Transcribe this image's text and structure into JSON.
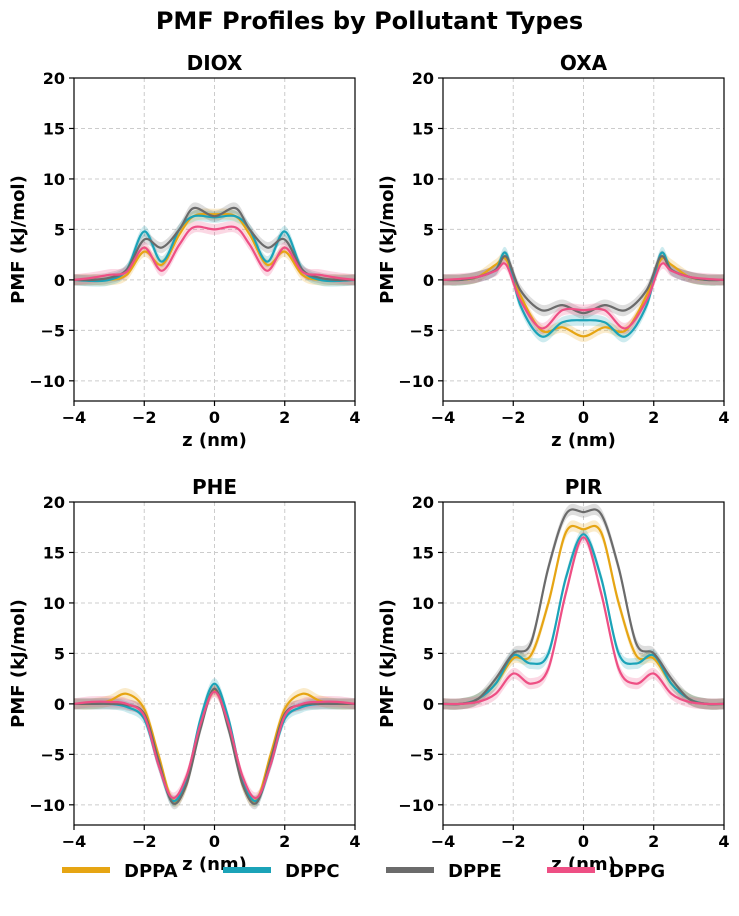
{
  "figure": {
    "title": "PMF Profiles by Pollutant Types"
  },
  "legend": {
    "placement": "bottom-center",
    "entries": [
      {
        "name": "DPPA",
        "color": "#E6A513"
      },
      {
        "name": "DPPC",
        "color": "#1BA3B8"
      },
      {
        "name": "DPPE",
        "color": "#6B6B6B"
      },
      {
        "name": "DPPG",
        "color": "#EE4F84"
      }
    ]
  },
  "chart_data": [
    {
      "type": "line",
      "title": "DIOX",
      "xlabel": "z (nm)",
      "ylabel": "PMF (kJ/mol)",
      "xlim": [
        -4,
        4
      ],
      "ylim": [
        -12,
        20
      ],
      "xticks": [
        "−4",
        "−2",
        "0",
        "2",
        "4"
      ],
      "yticks": [
        "20",
        "15",
        "10",
        "5",
        "0",
        "−5",
        "−10"
      ],
      "grid": true,
      "x": [
        -4,
        -3.5,
        -3,
        -2.5,
        -2,
        -1.5,
        -1,
        -0.6,
        0,
        0.6,
        1,
        1.5,
        2,
        2.5,
        3,
        3.5,
        4
      ],
      "series": [
        {
          "name": "DPPA",
          "values": [
            0,
            0,
            0,
            0.5,
            2.8,
            1.5,
            4.5,
            6.3,
            6.5,
            6.3,
            4.5,
            1.5,
            2.8,
            0.5,
            0,
            0,
            0
          ]
        },
        {
          "name": "DPPC",
          "values": [
            0,
            -0.1,
            0,
            1.0,
            4.8,
            1.8,
            5.0,
            6.3,
            6.2,
            6.3,
            5.0,
            1.8,
            4.8,
            1.0,
            0,
            -0.1,
            0
          ]
        },
        {
          "name": "DPPE",
          "values": [
            0,
            0,
            0.2,
            1.0,
            4.0,
            3.2,
            5.0,
            7.1,
            6.3,
            7.1,
            5.0,
            3.2,
            4.0,
            1.0,
            0.2,
            0,
            0
          ]
        },
        {
          "name": "DPPG",
          "values": [
            0,
            0.2,
            0.5,
            0.8,
            3.2,
            0.9,
            3.5,
            5.2,
            5.0,
            5.2,
            3.5,
            0.9,
            3.2,
            0.8,
            0.5,
            0.2,
            0
          ]
        }
      ]
    },
    {
      "type": "line",
      "title": "OXA",
      "xlabel": "z (nm)",
      "ylabel": "PMF (kJ/mol)",
      "xlim": [
        -4,
        4
      ],
      "ylim": [
        -12,
        20
      ],
      "xticks": [
        "−4",
        "−2",
        "0",
        "2",
        "4"
      ],
      "yticks": [
        "20",
        "15",
        "10",
        "5",
        "0",
        "−5",
        "−10"
      ],
      "grid": true,
      "x": [
        -4,
        -3.5,
        -3,
        -2.5,
        -2.2,
        -1.8,
        -1.2,
        -0.6,
        0,
        0.6,
        1.2,
        1.8,
        2.2,
        2.5,
        3,
        3.5,
        4
      ],
      "series": [
        {
          "name": "DPPA",
          "values": [
            0,
            0,
            0.3,
            1.5,
            2.0,
            -1.5,
            -5.0,
            -4.7,
            -5.6,
            -4.7,
            -5.0,
            -1.5,
            2.0,
            1.5,
            0.3,
            0,
            0
          ]
        },
        {
          "name": "DPPC",
          "values": [
            0,
            0,
            0.3,
            1.0,
            2.6,
            -2.5,
            -5.6,
            -4.2,
            -4.0,
            -4.2,
            -5.6,
            -2.5,
            2.6,
            1.0,
            0.3,
            0,
            0
          ]
        },
        {
          "name": "DPPE",
          "values": [
            0,
            0,
            0.3,
            1.0,
            2.3,
            -1.0,
            -3.0,
            -2.5,
            -3.3,
            -2.5,
            -3.0,
            -1.0,
            2.3,
            1.0,
            0.3,
            0,
            0
          ]
        },
        {
          "name": "DPPG",
          "values": [
            0,
            0.1,
            0.3,
            0.9,
            1.5,
            -2.0,
            -4.8,
            -3.0,
            -3.0,
            -3.0,
            -4.8,
            -2.0,
            1.5,
            0.9,
            0.3,
            0.1,
            0
          ]
        }
      ]
    },
    {
      "type": "line",
      "title": "PHE",
      "xlabel": "z (nm)",
      "ylabel": "PMF (kJ/mol)",
      "xlim": [
        -4,
        4
      ],
      "ylim": [
        -12,
        20
      ],
      "xticks": [
        "−4",
        "−2",
        "0",
        "2",
        "4"
      ],
      "yticks": [
        "20",
        "15",
        "10",
        "5",
        "0",
        "−5",
        "−10"
      ],
      "grid": true,
      "x": [
        -4,
        -3.5,
        -3,
        -2.5,
        -2,
        -1.6,
        -1.2,
        -0.8,
        -0.4,
        0,
        0.4,
        0.8,
        1.2,
        1.6,
        2,
        2.5,
        3,
        3.5,
        4
      ],
      "series": [
        {
          "name": "DPPA",
          "values": [
            0,
            0,
            0.3,
            1.0,
            -0.5,
            -5.0,
            -9.5,
            -8.0,
            -2.0,
            1.3,
            -2.0,
            -8.0,
            -9.5,
            -5.0,
            -0.5,
            1.0,
            0.3,
            0,
            0
          ]
        },
        {
          "name": "DPPC",
          "values": [
            0,
            0,
            0,
            -0.3,
            -1.5,
            -6.0,
            -9.6,
            -7.5,
            -1.5,
            2.0,
            -1.5,
            -7.5,
            -9.6,
            -6.0,
            -1.5,
            -0.3,
            0,
            0,
            0
          ]
        },
        {
          "name": "DPPE",
          "values": [
            0,
            0,
            0,
            -0.1,
            -1.0,
            -5.5,
            -9.8,
            -8.0,
            -2.5,
            1.5,
            -2.5,
            -8.0,
            -9.8,
            -5.5,
            -1.0,
            -0.1,
            0,
            0,
            0
          ]
        },
        {
          "name": "DPPG",
          "values": [
            0,
            0.2,
            0.2,
            0,
            -1.2,
            -6.0,
            -9.3,
            -7.2,
            -2.0,
            1.2,
            -2.0,
            -7.2,
            -9.3,
            -6.0,
            -1.2,
            0,
            0.2,
            0.2,
            0
          ]
        }
      ]
    },
    {
      "type": "line",
      "title": "PIR",
      "xlabel": "z (nm)",
      "ylabel": "PMF (kJ/mol)",
      "xlim": [
        -4,
        4
      ],
      "ylim": [
        -12,
        20
      ],
      "xticks": [
        "−4",
        "−2",
        "0",
        "2",
        "4"
      ],
      "yticks": [
        "20",
        "15",
        "10",
        "5",
        "0",
        "−5",
        "−10"
      ],
      "grid": true,
      "x": [
        -4,
        -3.5,
        -3,
        -2.5,
        -2,
        -1.5,
        -1,
        -0.5,
        0,
        0.5,
        1,
        1.5,
        2,
        2.5,
        3,
        3.5,
        4
      ],
      "series": [
        {
          "name": "DPPA",
          "values": [
            0,
            0,
            0.5,
            2.0,
            4.5,
            4.8,
            10.0,
            17.0,
            17.3,
            17.0,
            10.0,
            4.8,
            4.5,
            2.0,
            0.5,
            0,
            0
          ]
        },
        {
          "name": "DPPC",
          "values": [
            0,
            0,
            0.5,
            2.0,
            4.8,
            4.0,
            5.0,
            12.5,
            16.8,
            12.5,
            5.0,
            4.0,
            4.8,
            2.0,
            0.5,
            0,
            0
          ]
        },
        {
          "name": "DPPE",
          "values": [
            0,
            0,
            0.5,
            2.5,
            5.0,
            6.0,
            13.5,
            18.8,
            19.0,
            18.8,
            13.5,
            6.0,
            5.0,
            2.5,
            0.5,
            0,
            0
          ]
        },
        {
          "name": "DPPG",
          "values": [
            0,
            0,
            0.2,
            1.0,
            3.0,
            2.0,
            3.5,
            11.0,
            16.5,
            11.0,
            3.5,
            2.0,
            3.0,
            1.0,
            0.2,
            0,
            0
          ]
        }
      ]
    }
  ]
}
